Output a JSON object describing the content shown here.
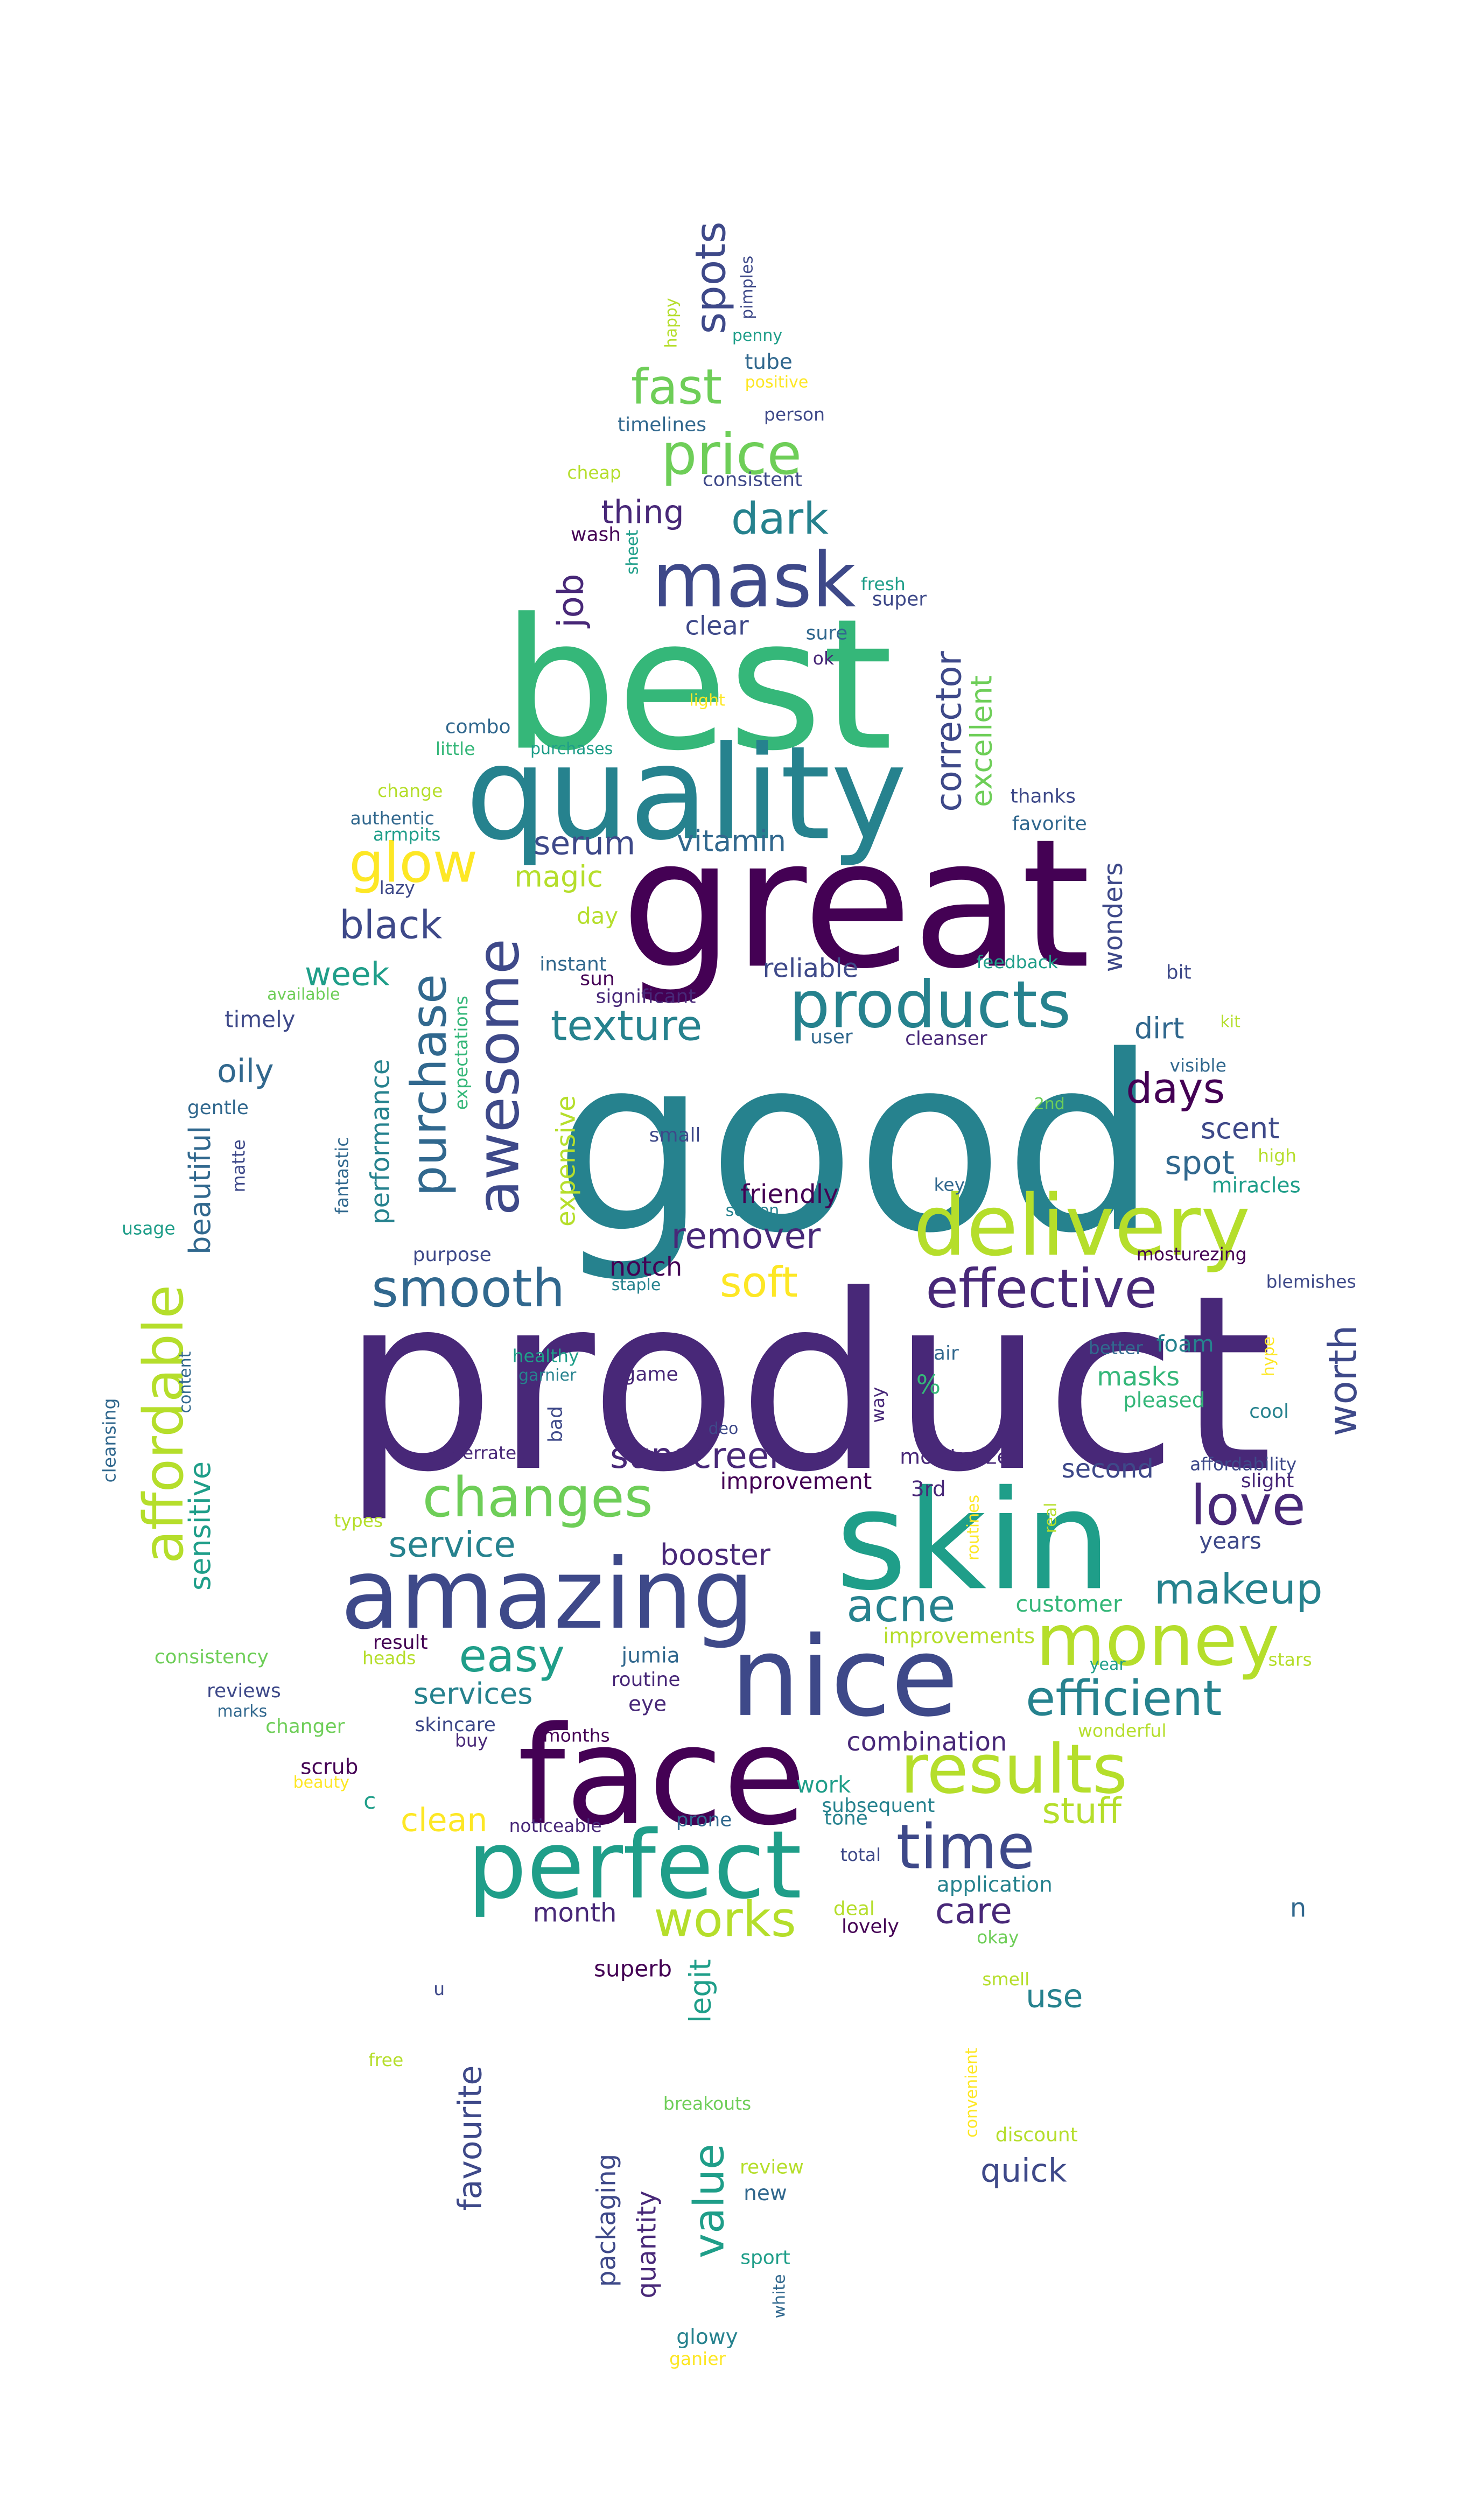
{
  "palette": {
    "p1": "#440154",
    "p2": "#482878",
    "p3": "#3e4989",
    "p4": "#31688e",
    "p5": "#26828e",
    "p6": "#1f9e89",
    "p7": "#35b779",
    "p8": "#6ece58",
    "p9": "#b5de2b",
    "p10": "#fde725"
  },
  "words": [
    {
      "t": "product",
      "c": "p2"
    },
    {
      "t": "good",
      "c": "p5"
    },
    {
      "t": "best",
      "c": "p7"
    },
    {
      "t": "great",
      "c": "p1"
    },
    {
      "t": "quality",
      "c": "p5"
    },
    {
      "t": "skin",
      "c": "p6"
    },
    {
      "t": "face",
      "c": "p1"
    },
    {
      "t": "nice",
      "c": "p3"
    },
    {
      "t": "amazing",
      "c": "p3"
    },
    {
      "t": "perfect",
      "c": "p6"
    },
    {
      "t": "delivery",
      "c": "p9"
    },
    {
      "t": "mask",
      "c": "p3"
    },
    {
      "t": "products",
      "c": "p5"
    },
    {
      "t": "results",
      "c": "p9"
    },
    {
      "t": "time",
      "c": "p3"
    },
    {
      "t": "awesome",
      "c": "p3"
    },
    {
      "t": "effective",
      "c": "p2"
    },
    {
      "t": "changes",
      "c": "p8"
    },
    {
      "t": "money",
      "c": "p9"
    },
    {
      "t": "love",
      "c": "p2"
    },
    {
      "t": "price",
      "c": "p8"
    },
    {
      "t": "smooth",
      "c": "p4"
    },
    {
      "t": "efficient",
      "c": "p5"
    },
    {
      "t": "affordable",
      "c": "p9"
    },
    {
      "t": "acne",
      "c": "p5"
    },
    {
      "t": "makeup",
      "c": "p5"
    },
    {
      "t": "works",
      "c": "p9"
    },
    {
      "t": "glow",
      "c": "p10"
    },
    {
      "t": "fast",
      "c": "p8"
    },
    {
      "t": "dark",
      "c": "p5"
    },
    {
      "t": "purchase",
      "c": "p4"
    },
    {
      "t": "easy",
      "c": "p6"
    },
    {
      "t": "spots",
      "c": "p3"
    },
    {
      "t": "worth",
      "c": "p3"
    },
    {
      "t": "soft",
      "c": "p10"
    },
    {
      "t": "texture",
      "c": "p5"
    },
    {
      "t": "value",
      "c": "p6"
    },
    {
      "t": "days",
      "c": "p1"
    },
    {
      "t": "corrector",
      "c": "p3"
    },
    {
      "t": "clean",
      "c": "p10"
    },
    {
      "t": "black",
      "c": "p3"
    },
    {
      "t": "remover",
      "c": "p2"
    },
    {
      "t": "service",
      "c": "p5"
    },
    {
      "t": "stuff",
      "c": "p9"
    },
    {
      "t": "sunscreen",
      "c": "p2"
    },
    {
      "t": "job",
      "c": "p2"
    },
    {
      "t": "care",
      "c": "p2"
    },
    {
      "t": "thing",
      "c": "p2"
    },
    {
      "t": "serum",
      "c": "p3"
    },
    {
      "t": "week",
      "c": "p6"
    },
    {
      "t": "oily",
      "c": "p4"
    },
    {
      "t": "spot",
      "c": "p4"
    },
    {
      "t": "sensitive",
      "c": "p6"
    },
    {
      "t": "beautiful",
      "c": "p4"
    },
    {
      "t": "excellent",
      "c": "p8"
    },
    {
      "t": "vitamin",
      "c": "p4"
    },
    {
      "t": "magic",
      "c": "p9"
    },
    {
      "t": "booster",
      "c": "p2"
    },
    {
      "t": "dirt",
      "c": "p4"
    },
    {
      "t": "scent",
      "c": "p3"
    },
    {
      "t": "services",
      "c": "p5"
    },
    {
      "t": "quick",
      "c": "p3"
    },
    {
      "t": "use",
      "c": "p5"
    },
    {
      "t": "combination",
      "c": "p2"
    },
    {
      "t": "friendly",
      "c": "p1"
    },
    {
      "t": "favourite",
      "c": "p3"
    },
    {
      "t": "legit",
      "c": "p6"
    },
    {
      "t": "reliable",
      "c": "p3"
    },
    {
      "t": "clear",
      "c": "p3"
    },
    {
      "t": "wonders",
      "c": "p3"
    },
    {
      "t": "second",
      "c": "p3"
    },
    {
      "t": "customer",
      "c": "p7"
    },
    {
      "t": "years",
      "c": "p3"
    },
    {
      "t": "month",
      "c": "p2"
    },
    {
      "t": "masks",
      "c": "p7"
    },
    {
      "t": "notch",
      "c": "p1"
    },
    {
      "t": "expensive",
      "c": "p9"
    },
    {
      "t": "performance",
      "c": "p5"
    },
    {
      "t": "packaging",
      "c": "p3"
    },
    {
      "t": "quantity",
      "c": "p2"
    },
    {
      "t": "timely",
      "c": "p3"
    },
    {
      "t": "day",
      "c": "p9"
    },
    {
      "t": "scrub",
      "c": "p1"
    },
    {
      "t": "c",
      "c": "p6"
    },
    {
      "t": "n",
      "c": "p4"
    },
    {
      "t": "combo",
      "c": "p4"
    },
    {
      "t": "little",
      "c": "p7"
    },
    {
      "t": "purchases",
      "c": "p6"
    },
    {
      "t": "change",
      "c": "p9"
    },
    {
      "t": "authentic",
      "c": "p4"
    },
    {
      "t": "armpits",
      "c": "p6"
    },
    {
      "t": "lazy",
      "c": "p3"
    },
    {
      "t": "available",
      "c": "p8"
    },
    {
      "t": "gentle",
      "c": "p4"
    },
    {
      "t": "matte",
      "c": "p3"
    },
    {
      "t": "usage",
      "c": "p6"
    },
    {
      "t": "fantastic",
      "c": "p4"
    },
    {
      "t": "expectations",
      "c": "p7"
    },
    {
      "t": "cleansing",
      "c": "p4"
    },
    {
      "t": "content",
      "c": "p4"
    },
    {
      "t": "instant",
      "c": "p4"
    },
    {
      "t": "sun",
      "c": "p1"
    },
    {
      "t": "significant",
      "c": "p2"
    },
    {
      "t": "user",
      "c": "p4"
    },
    {
      "t": "cleanser",
      "c": "p2"
    },
    {
      "t": "small",
      "c": "p3"
    },
    {
      "t": "screen",
      "c": "p5"
    },
    {
      "t": "purpose",
      "c": "p3"
    },
    {
      "t": "staple",
      "c": "p5"
    },
    {
      "t": "healthy",
      "c": "p6"
    },
    {
      "t": "garnier",
      "c": "p5"
    },
    {
      "t": "game",
      "c": "p2"
    },
    {
      "t": "bad",
      "c": "p3"
    },
    {
      "t": "overrated",
      "c": "p2"
    },
    {
      "t": "deo",
      "c": "p3"
    },
    {
      "t": "%",
      "c": "p7"
    },
    {
      "t": "air",
      "c": "p4"
    },
    {
      "t": "way",
      "c": "p2"
    },
    {
      "t": "improvement",
      "c": "p1"
    },
    {
      "t": "moisturizer",
      "c": "p2"
    },
    {
      "t": "3rd",
      "c": "p2"
    },
    {
      "t": "routines",
      "c": "p10"
    },
    {
      "t": "real",
      "c": "p9"
    },
    {
      "t": "types",
      "c": "p9"
    },
    {
      "t": "result",
      "c": "p1"
    },
    {
      "t": "heads",
      "c": "p9"
    },
    {
      "t": "jumia",
      "c": "p4"
    },
    {
      "t": "routine",
      "c": "p2"
    },
    {
      "t": "eye",
      "c": "p2"
    },
    {
      "t": "improvements",
      "c": "p9"
    },
    {
      "t": "consistency",
      "c": "p8"
    },
    {
      "t": "reviews",
      "c": "p3"
    },
    {
      "t": "marks",
      "c": "p4"
    },
    {
      "t": "changer",
      "c": "p8"
    },
    {
      "t": "skincare",
      "c": "p3"
    },
    {
      "t": "buy",
      "c": "p2"
    },
    {
      "t": "months",
      "c": "p1"
    },
    {
      "t": "beauty",
      "c": "p10"
    },
    {
      "t": "noticeable",
      "c": "p2"
    },
    {
      "t": "prone",
      "c": "p4"
    },
    {
      "t": "subsequent",
      "c": "p5"
    },
    {
      "t": "tone",
      "c": "p5"
    },
    {
      "t": "work",
      "c": "p6"
    },
    {
      "t": "total",
      "c": "p3"
    },
    {
      "t": "application",
      "c": "p5"
    },
    {
      "t": "deal",
      "c": "p9"
    },
    {
      "t": "lovely",
      "c": "p1"
    },
    {
      "t": "okay",
      "c": "p8"
    },
    {
      "t": "superb",
      "c": "p1"
    },
    {
      "t": "smell",
      "c": "p9"
    },
    {
      "t": "free",
      "c": "p9"
    },
    {
      "t": "breakouts",
      "c": "p8"
    },
    {
      "t": "convenient",
      "c": "p10"
    },
    {
      "t": "discount",
      "c": "p9"
    },
    {
      "t": "review",
      "c": "p9"
    },
    {
      "t": "new",
      "c": "p4"
    },
    {
      "t": "sport",
      "c": "p6"
    },
    {
      "t": "white",
      "c": "p4"
    },
    {
      "t": "glowy",
      "c": "p5"
    },
    {
      "t": "ganier",
      "c": "p10"
    },
    {
      "t": "pimples",
      "c": "p3"
    },
    {
      "t": "happy",
      "c": "p9"
    },
    {
      "t": "penny",
      "c": "p6"
    },
    {
      "t": "positive",
      "c": "p10"
    },
    {
      "t": "tube",
      "c": "p4"
    },
    {
      "t": "timelines",
      "c": "p4"
    },
    {
      "t": "person",
      "c": "p3"
    },
    {
      "t": "cheap",
      "c": "p9"
    },
    {
      "t": "consistent",
      "c": "p3"
    },
    {
      "t": "wash",
      "c": "p1"
    },
    {
      "t": "sheet",
      "c": "p6"
    },
    {
      "t": "fresh",
      "c": "p6"
    },
    {
      "t": "super",
      "c": "p3"
    },
    {
      "t": "sure",
      "c": "p4"
    },
    {
      "t": "ok",
      "c": "p2"
    },
    {
      "t": "light",
      "c": "p10"
    },
    {
      "t": "thanks",
      "c": "p3"
    },
    {
      "t": "favorite",
      "c": "p4"
    },
    {
      "t": "feedback",
      "c": "p6"
    },
    {
      "t": "bit",
      "c": "p3"
    },
    {
      "t": "kit",
      "c": "p9"
    },
    {
      "t": "visible",
      "c": "p4"
    },
    {
      "t": "2nd",
      "c": "p8"
    },
    {
      "t": "high",
      "c": "p9"
    },
    {
      "t": "key",
      "c": "p4"
    },
    {
      "t": "miracles",
      "c": "p6"
    },
    {
      "t": "mosturezing",
      "c": "p1"
    },
    {
      "t": "blemishes",
      "c": "p3"
    },
    {
      "t": "better",
      "c": "p4"
    },
    {
      "t": "hype",
      "c": "p10"
    },
    {
      "t": "foam",
      "c": "p5"
    },
    {
      "t": "pleased",
      "c": "p7"
    },
    {
      "t": "cool",
      "c": "p5"
    },
    {
      "t": "affordability",
      "c": "p3"
    },
    {
      "t": "slight",
      "c": "p2"
    },
    {
      "t": "stars",
      "c": "p9"
    },
    {
      "t": "year",
      "c": "p6"
    },
    {
      "t": "wonderful",
      "c": "p9"
    },
    {
      "t": "u",
      "c": "p3"
    }
  ]
}
